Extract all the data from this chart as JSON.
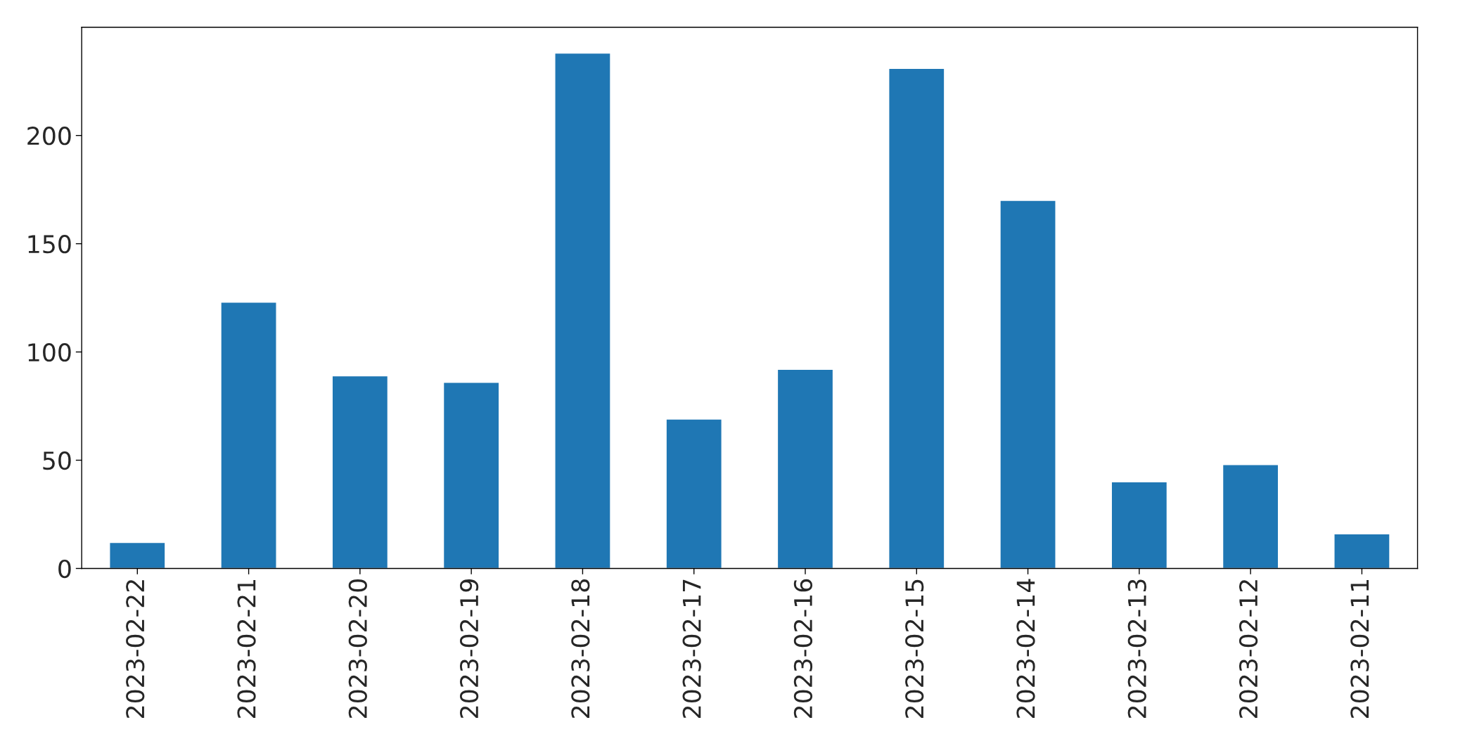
{
  "chart_data": {
    "type": "bar",
    "categories": [
      "2023-02-22",
      "2023-02-21",
      "2023-02-20",
      "2023-02-19",
      "2023-02-18",
      "2023-02-17",
      "2023-02-16",
      "2023-02-15",
      "2023-02-14",
      "2023-02-13",
      "2023-02-12",
      "2023-02-11"
    ],
    "values": [
      12,
      123,
      89,
      86,
      238,
      69,
      92,
      231,
      170,
      40,
      48,
      16
    ],
    "color": "#1f77b4",
    "ylim": [
      0,
      250
    ],
    "yticks": [
      0,
      50,
      100,
      150,
      200
    ],
    "grid": false,
    "legend": false
  }
}
